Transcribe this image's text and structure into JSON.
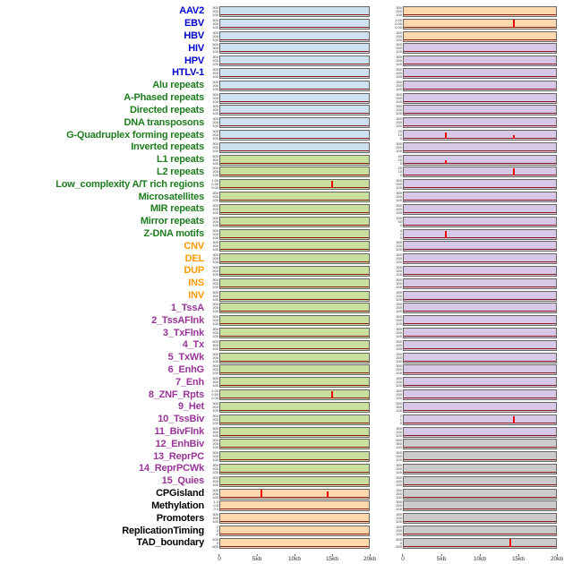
{
  "chart_data": {
    "type": "line",
    "layout": "small-multiples; 44 genomic feature tracks in rows, 2 panel columns; flat dark-red signal baseline with occasional red spikes; x axis shared at bottom",
    "x_axis": {
      "ticks": [
        "0",
        "5kb",
        "10kb",
        "15kb",
        "20kb"
      ],
      "range_kb": [
        0,
        20
      ]
    },
    "rows": [
      {
        "label": "AAV2",
        "color": "blue",
        "left": {
          "bg": "blue",
          "yticks": [
            "300",
            "200",
            "100"
          ],
          "spikes": []
        },
        "right": {
          "bg": "orange",
          "yticks": [
            "300",
            "200",
            "100"
          ],
          "spikes": []
        }
      },
      {
        "label": "EBV",
        "color": "blue",
        "left": {
          "bg": "blue",
          "yticks": [
            "300",
            "200",
            "100"
          ],
          "spikes": []
        },
        "right": {
          "bg": "orange",
          "yticks": [
            "1.00",
            "0.50",
            "0.00"
          ],
          "spikes": [
            {
              "x_kb": 14.5,
              "height_frac": 0.9
            }
          ]
        }
      },
      {
        "label": "HBV",
        "color": "blue",
        "left": {
          "bg": "blue",
          "yticks": [
            "300",
            "200",
            "100"
          ],
          "spikes": []
        },
        "right": {
          "bg": "orange",
          "yticks": [
            "300",
            "200",
            "100"
          ],
          "spikes": []
        }
      },
      {
        "label": "HIV",
        "color": "blue",
        "left": {
          "bg": "blue",
          "yticks": [
            "500",
            "300",
            "100"
          ],
          "spikes": []
        },
        "right": {
          "bg": "purple",
          "yticks": [
            "300",
            "200",
            "100"
          ],
          "spikes": []
        }
      },
      {
        "label": "HPV",
        "color": "blue",
        "left": {
          "bg": "blue",
          "yticks": [
            "300",
            "200",
            "100"
          ],
          "spikes": []
        },
        "right": {
          "bg": "purple",
          "yticks": [
            "300",
            "200",
            "100"
          ],
          "spikes": []
        }
      },
      {
        "label": "HTLV-1",
        "color": "blue",
        "left": {
          "bg": "blue",
          "yticks": [
            "300",
            "200",
            "100"
          ],
          "spikes": []
        },
        "right": {
          "bg": "purple",
          "yticks": [
            "300",
            "200",
            "100"
          ],
          "spikes": []
        }
      },
      {
        "label": "Alu repeats",
        "color": "green",
        "left": {
          "bg": "blue",
          "yticks": [
            "300",
            "200",
            "100"
          ],
          "spikes": []
        },
        "right": {
          "bg": "purple",
          "yticks": [
            "300",
            "200",
            "100"
          ],
          "spikes": []
        }
      },
      {
        "label": "A-Phased repeats",
        "color": "green",
        "left": {
          "bg": "blue",
          "yticks": [
            "300",
            "200",
            "100"
          ],
          "spikes": []
        },
        "right": {
          "bg": "purple",
          "yticks": [
            "300",
            "200",
            "100"
          ],
          "spikes": []
        }
      },
      {
        "label": "Directed repeats",
        "color": "green",
        "left": {
          "bg": "blue",
          "yticks": [
            "300",
            "200",
            "100"
          ],
          "spikes": []
        },
        "right": {
          "bg": "purple",
          "yticks": [
            "300",
            "200",
            "100"
          ],
          "spikes": []
        }
      },
      {
        "label": "DNA transposons",
        "color": "green",
        "left": {
          "bg": "blue",
          "yticks": [
            "300",
            "200",
            "100"
          ],
          "spikes": []
        },
        "right": {
          "bg": "purple",
          "yticks": [
            "300",
            "200",
            "100"
          ],
          "spikes": []
        }
      },
      {
        "label": "G-Quadruplex forming repeats",
        "color": "green",
        "left": {
          "bg": "blue",
          "yticks": [
            "300",
            "200",
            "100"
          ],
          "spikes": []
        },
        "right": {
          "bg": "purple",
          "yticks": [
            "20",
            "10",
            "0"
          ],
          "spikes": [
            {
              "x_kb": 5.5,
              "height_frac": 0.75
            },
            {
              "x_kb": 14.5,
              "height_frac": 0.45
            }
          ]
        }
      },
      {
        "label": "Inverted repeats",
        "color": "green",
        "left": {
          "bg": "blue",
          "yticks": [
            "300",
            "200",
            "100"
          ],
          "spikes": []
        },
        "right": {
          "bg": "purple",
          "yticks": [
            "300",
            "200",
            "100"
          ],
          "spikes": []
        }
      },
      {
        "label": "L1 repeats",
        "color": "green",
        "left": {
          "bg": "green",
          "yticks": [
            "500",
            "300",
            "100"
          ],
          "spikes": []
        },
        "right": {
          "bg": "purple",
          "yticks": [
            "40",
            "20",
            "0"
          ],
          "spikes": [
            {
              "x_kb": 5.5,
              "height_frac": 0.35
            }
          ]
        }
      },
      {
        "label": "L2 repeats",
        "color": "green",
        "left": {
          "bg": "green",
          "yticks": [
            "300",
            "200",
            "100"
          ],
          "spikes": []
        },
        "right": {
          "bg": "purple",
          "yticks": [
            "20",
            "10",
            "0"
          ],
          "spikes": [
            {
              "x_kb": 14.5,
              "height_frac": 0.85
            }
          ]
        }
      },
      {
        "label": "Low_complexity A/T rich regions",
        "color": "green",
        "left": {
          "bg": "green",
          "yticks": [
            "1.00",
            "0.50",
            "0.00"
          ],
          "spikes": [
            {
              "x_kb": 15,
              "height_frac": 0.8
            }
          ]
        },
        "right": {
          "bg": "purple",
          "yticks": [
            "300",
            "200",
            "100"
          ],
          "spikes": []
        }
      },
      {
        "label": "Microsatellites",
        "color": "green",
        "left": {
          "bg": "green",
          "yticks": [
            "300",
            "200",
            "100"
          ],
          "spikes": []
        },
        "right": {
          "bg": "purple",
          "yticks": [
            "300",
            "200",
            "100"
          ],
          "spikes": []
        }
      },
      {
        "label": "MIR repeats",
        "color": "green",
        "left": {
          "bg": "green",
          "yticks": [
            "300",
            "200",
            "100"
          ],
          "spikes": []
        },
        "right": {
          "bg": "purple",
          "yticks": [
            "300",
            "200",
            "100"
          ],
          "spikes": []
        }
      },
      {
        "label": "Mirror repeats",
        "color": "green",
        "left": {
          "bg": "green",
          "yticks": [
            "300",
            "200",
            "100"
          ],
          "spikes": []
        },
        "right": {
          "bg": "purple",
          "yticks": [
            "100",
            "50",
            "0"
          ],
          "spikes": []
        }
      },
      {
        "label": "Z-DNA motifs",
        "color": "green",
        "left": {
          "bg": "green",
          "yticks": [
            "300",
            "200",
            "100"
          ],
          "spikes": []
        },
        "right": {
          "bg": "purple",
          "yticks": [
            "4",
            "2",
            "0"
          ],
          "spikes": [
            {
              "x_kb": 5.5,
              "height_frac": 0.75
            }
          ]
        }
      },
      {
        "label": "CNV",
        "color": "orange",
        "left": {
          "bg": "green",
          "yticks": [
            "300",
            "200",
            "100"
          ],
          "spikes": []
        },
        "right": {
          "bg": "purple",
          "yticks": [
            "300",
            "200",
            "100"
          ],
          "spikes": []
        }
      },
      {
        "label": "DEL",
        "color": "orange",
        "left": {
          "bg": "green",
          "yticks": [
            "300",
            "200",
            "100"
          ],
          "spikes": []
        },
        "right": {
          "bg": "purple",
          "yticks": [
            "300",
            "200",
            "100"
          ],
          "spikes": []
        }
      },
      {
        "label": "DUP",
        "color": "orange",
        "left": {
          "bg": "green",
          "yticks": [
            "300",
            "200",
            "100"
          ],
          "spikes": []
        },
        "right": {
          "bg": "purple",
          "yticks": [
            "300",
            "200",
            "100"
          ],
          "spikes": []
        }
      },
      {
        "label": "INS",
        "color": "orange",
        "left": {
          "bg": "green",
          "yticks": [
            "300",
            "200",
            "100"
          ],
          "spikes": []
        },
        "right": {
          "bg": "purple",
          "yticks": [
            "500",
            "300",
            "100"
          ],
          "spikes": []
        }
      },
      {
        "label": "INV",
        "color": "orange",
        "left": {
          "bg": "green",
          "yticks": [
            "300",
            "200",
            "100"
          ],
          "spikes": []
        },
        "right": {
          "bg": "purple",
          "yticks": [
            "300",
            "200",
            "100"
          ],
          "spikes": []
        }
      },
      {
        "label": "1_TssA",
        "color": "purple",
        "left": {
          "bg": "green",
          "yticks": [
            "300",
            "200",
            "100"
          ],
          "spikes": []
        },
        "right": {
          "bg": "purple",
          "yticks": [
            "300",
            "200",
            "100"
          ],
          "spikes": []
        }
      },
      {
        "label": "2_TssAFlnk",
        "color": "purple",
        "left": {
          "bg": "green",
          "yticks": [
            "300",
            "200",
            "100"
          ],
          "spikes": []
        },
        "right": {
          "bg": "purple",
          "yticks": [
            "300",
            "200",
            "100"
          ],
          "spikes": []
        }
      },
      {
        "label": "3_TxFlnk",
        "color": "purple",
        "left": {
          "bg": "green",
          "yticks": [
            "300",
            "200",
            "100"
          ],
          "spikes": []
        },
        "right": {
          "bg": "purple",
          "yticks": [
            "300",
            "200",
            "100"
          ],
          "spikes": []
        }
      },
      {
        "label": "4_Tx",
        "color": "purple",
        "left": {
          "bg": "green",
          "yticks": [
            "500",
            "300",
            "100"
          ],
          "spikes": []
        },
        "right": {
          "bg": "purple",
          "yticks": [
            "300",
            "200",
            "100"
          ],
          "spikes": []
        }
      },
      {
        "label": "5_TxWk",
        "color": "purple",
        "left": {
          "bg": "green",
          "yticks": [
            "300",
            "200",
            "100"
          ],
          "spikes": []
        },
        "right": {
          "bg": "purple",
          "yticks": [
            "300",
            "200",
            "100"
          ],
          "spikes": []
        }
      },
      {
        "label": "6_EnhG",
        "color": "purple",
        "left": {
          "bg": "green",
          "yticks": [
            "300",
            "200",
            "100"
          ],
          "spikes": []
        },
        "right": {
          "bg": "purple",
          "yticks": [
            "300",
            "200",
            "100"
          ],
          "spikes": []
        }
      },
      {
        "label": "7_Enh",
        "color": "purple",
        "left": {
          "bg": "green",
          "yticks": [
            "300",
            "200",
            "100"
          ],
          "spikes": []
        },
        "right": {
          "bg": "purple",
          "yticks": [
            "300",
            "200",
            "100"
          ],
          "spikes": []
        }
      },
      {
        "label": "8_ZNF_Rpts",
        "color": "purple",
        "left": {
          "bg": "green",
          "yticks": [
            "1.00",
            "0.50",
            "0.00"
          ],
          "spikes": [
            {
              "x_kb": 15,
              "height_frac": 0.8
            }
          ]
        },
        "right": {
          "bg": "purple",
          "yticks": [
            "300",
            "200",
            "100"
          ],
          "spikes": []
        }
      },
      {
        "label": "9_Het",
        "color": "purple",
        "left": {
          "bg": "green",
          "yticks": [
            "300",
            "200",
            "100"
          ],
          "spikes": []
        },
        "right": {
          "bg": "purple",
          "yticks": [
            "500",
            "300",
            "100"
          ],
          "spikes": []
        }
      },
      {
        "label": "10_TssBiv",
        "color": "purple",
        "left": {
          "bg": "green",
          "yticks": [
            "300",
            "200",
            "100"
          ],
          "spikes": []
        },
        "right": {
          "bg": "purple",
          "yticks": [
            "2",
            "1",
            "0"
          ],
          "spikes": [
            {
              "x_kb": 14.5,
              "height_frac": 0.8
            }
          ]
        }
      },
      {
        "label": "11_BivFlnk",
        "color": "purple",
        "left": {
          "bg": "green",
          "yticks": [
            "300",
            "200",
            "100"
          ],
          "spikes": []
        },
        "right": {
          "bg": "purple",
          "yticks": [
            "300",
            "200",
            "100"
          ],
          "spikes": []
        }
      },
      {
        "label": "12_EnhBiv",
        "color": "purple",
        "left": {
          "bg": "green",
          "yticks": [
            "300",
            "200",
            "100"
          ],
          "spikes": []
        },
        "right": {
          "bg": "gray",
          "yticks": [
            "500",
            "300",
            "100"
          ],
          "spikes": []
        }
      },
      {
        "label": "13_ReprPC",
        "color": "purple",
        "left": {
          "bg": "green",
          "yticks": [
            "300",
            "200",
            "100"
          ],
          "spikes": []
        },
        "right": {
          "bg": "gray",
          "yticks": [
            "300",
            "200",
            "100"
          ],
          "spikes": []
        }
      },
      {
        "label": "14_ReprPCWk",
        "color": "purple",
        "left": {
          "bg": "green",
          "yticks": [
            "300",
            "200",
            "100"
          ],
          "spikes": []
        },
        "right": {
          "bg": "gray",
          "yticks": [
            "300",
            "200",
            "100"
          ],
          "spikes": []
        }
      },
      {
        "label": "15_Quies",
        "color": "purple",
        "left": {
          "bg": "green",
          "yticks": [
            "300",
            "200",
            "100"
          ],
          "spikes": []
        },
        "right": {
          "bg": "gray",
          "yticks": [
            "300",
            "200",
            "100"
          ],
          "spikes": []
        }
      },
      {
        "label": "CPGisland",
        "color": "black",
        "left": {
          "bg": "orange",
          "yticks": [
            "300",
            "200",
            "100"
          ],
          "spikes": [
            {
              "x_kb": 5.5,
              "height_frac": 0.85
            },
            {
              "x_kb": 14.5,
              "height_frac": 0.7
            }
          ]
        },
        "right": {
          "bg": "gray",
          "yticks": [
            "300",
            "200",
            "100"
          ],
          "spikes": []
        }
      },
      {
        "label": "Methylation",
        "color": "black",
        "left": {
          "bg": "orange",
          "yticks": [
            "1.0",
            "0.5",
            "0.0"
          ],
          "spikes": []
        },
        "right": {
          "bg": "gray",
          "yticks": [
            "300",
            "200",
            "100"
          ],
          "spikes": []
        }
      },
      {
        "label": "Promoters",
        "color": "black",
        "left": {
          "bg": "orange",
          "yticks": [
            "300",
            "200",
            "100"
          ],
          "spikes": []
        },
        "right": {
          "bg": "gray",
          "yticks": [
            "300",
            "200",
            "100"
          ],
          "spikes": []
        }
      },
      {
        "label": "ReplicationTiming",
        "color": "black",
        "left": {
          "bg": "orange",
          "yticks": [
            "2",
            "0",
            "-2"
          ],
          "spikes": []
        },
        "right": {
          "bg": "gray",
          "yticks": [
            "300",
            "200",
            "100"
          ],
          "spikes": []
        }
      },
      {
        "label": "TAD_boundary",
        "color": "black",
        "left": {
          "bg": "orange",
          "yticks": [
            "400",
            "0",
            "-400"
          ],
          "spikes": []
        },
        "right": {
          "bg": "gray",
          "yticks": [
            "500",
            "0",
            "-500"
          ],
          "spikes": [
            {
              "x_kb": 14,
              "height_frac": 0.85
            }
          ]
        }
      }
    ]
  },
  "colors": {
    "panel": {
      "blue": "#cde1ef",
      "green": "#c9df9d",
      "orange": "#fcd8ac",
      "purple": "#d6c8e6",
      "gray": "#cbcbcb"
    },
    "label": {
      "blue": "#0000cc",
      "green": "#1e7d1e",
      "orange": "#ff9900",
      "purple": "#993399",
      "black": "#000000"
    },
    "spike": "#ee0000",
    "baseline": "#8b1a1a"
  }
}
